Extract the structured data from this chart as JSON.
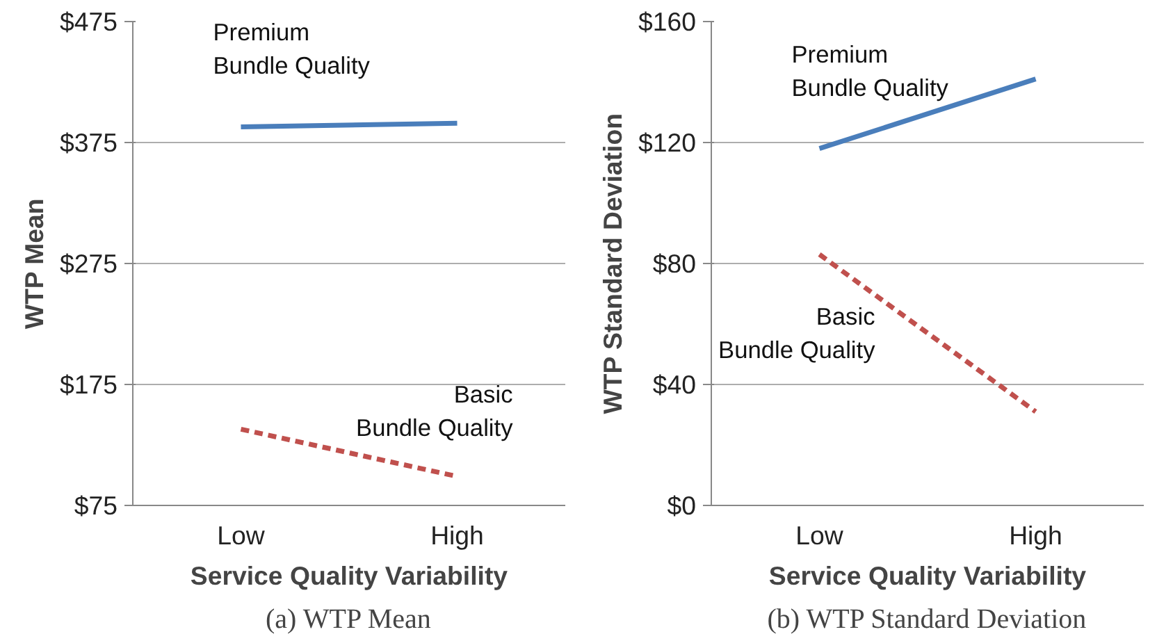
{
  "chart_data": [
    {
      "type": "line",
      "title": "(a) WTP Mean",
      "xlabel": "Service Quality Variability",
      "ylabel": "WTP Mean",
      "categories": [
        "Low",
        "High"
      ],
      "ylim": [
        75,
        475
      ],
      "yticks": [
        {
          "value": 75,
          "label": "$75"
        },
        {
          "value": 175,
          "label": "$175"
        },
        {
          "value": 275,
          "label": "$275"
        },
        {
          "value": 375,
          "label": "$375"
        },
        {
          "value": 475,
          "label": "$475"
        }
      ],
      "grid": "y",
      "marker": "none",
      "series": [
        {
          "name": "Premium\nBundle Quality",
          "color": "#4a7ebb",
          "line_style": "solid",
          "values": [
            388,
            391
          ]
        },
        {
          "name": "Basic\nBundle Quality",
          "color": "#c0504d",
          "line_style": "dashed",
          "values": [
            138,
            99
          ]
        }
      ]
    },
    {
      "type": "line",
      "title": "(b) WTP Standard Deviation",
      "xlabel": "Service Quality Variability",
      "ylabel": "WTP Standard Deviation",
      "categories": [
        "Low",
        "High"
      ],
      "ylim": [
        0,
        160
      ],
      "yticks": [
        {
          "value": 0,
          "label": "$0"
        },
        {
          "value": 40,
          "label": "$40"
        },
        {
          "value": 80,
          "label": "$80"
        },
        {
          "value": 120,
          "label": "$120"
        },
        {
          "value": 160,
          "label": "$160"
        }
      ],
      "grid": "y",
      "marker": "none",
      "series": [
        {
          "name": "Premium\nBundle Quality",
          "color": "#4a7ebb",
          "line_style": "solid",
          "values": [
            118,
            141
          ]
        },
        {
          "name": "Basic\nBundle Quality",
          "color": "#c0504d",
          "line_style": "dashed",
          "values": [
            83,
            31
          ]
        }
      ]
    }
  ]
}
